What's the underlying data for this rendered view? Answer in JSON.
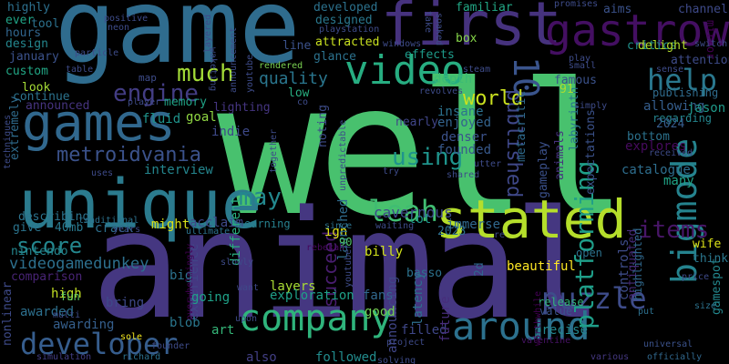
{
  "words": [
    {
      "text": "well",
      "color": "#48c16e"
    },
    {
      "text": "animal",
      "color": "#453781"
    },
    {
      "text": "game",
      "color": "#2f6c8e"
    },
    {
      "text": "unique",
      "color": "#2b7b8e"
    },
    {
      "text": "first",
      "color": "#46327e"
    },
    {
      "text": "gastrow",
      "color": "#440f62"
    },
    {
      "text": "stated",
      "color": "#b5de2b"
    },
    {
      "text": "games",
      "color": "#31688e"
    },
    {
      "text": "video",
      "color": "#27ad81"
    },
    {
      "text": "around",
      "color": "#2c718e"
    },
    {
      "text": "company",
      "color": "#2fb47c"
    },
    {
      "text": "bigmode",
      "color": "#25838e"
    },
    {
      "text": "leah",
      "color": "#40bd72"
    },
    {
      "text": "developer",
      "color": "#365d8d"
    },
    {
      "text": "10",
      "color": "#3a548c"
    },
    {
      "text": "help",
      "color": "#2a788e"
    },
    {
      "text": "puzzle",
      "color": "#3e4c8a"
    },
    {
      "text": "platforming",
      "color": "#1f9e89"
    },
    {
      "text": "metroidvania",
      "color": "#3b528b"
    },
    {
      "text": "published",
      "color": "#3f4889"
    },
    {
      "text": "engine",
      "color": "#433d84"
    },
    {
      "text": "much",
      "color": "#a2da37"
    },
    {
      "text": "succeed",
      "color": "#481d6f"
    },
    {
      "text": "using",
      "color": "#1f948c"
    },
    {
      "text": "may",
      "color": "#23888e"
    },
    {
      "text": "items",
      "color": "#481668"
    },
    {
      "text": "score",
      "color": "#24878e"
    },
    {
      "text": "world",
      "color": "#cae11f"
    },
    {
      "text": "quality",
      "color": "#2a768e"
    },
    {
      "text": "interview",
      "color": "#24868e"
    },
    {
      "text": "videogamedunkey",
      "color": "#2d708e"
    },
    {
      "text": "memory",
      "color": "#20a386"
    },
    {
      "text": "fluid",
      "color": "#1f948c"
    },
    {
      "text": "depth",
      "color": "#3bbb75"
    },
    {
      "text": "insane",
      "color": "#2c728e"
    },
    {
      "text": "enjoyed",
      "color": "#33638d"
    },
    {
      "text": "denser",
      "color": "#3b528b"
    },
    {
      "text": "founded",
      "color": "#38598c"
    },
    {
      "text": "catalogue",
      "color": "#2e6e8e"
    },
    {
      "text": "explores",
      "color": "#460b5e"
    },
    {
      "text": "bottom",
      "color": "#2c728e"
    },
    {
      "text": "many",
      "color": "#20a386"
    },
    {
      "text": "acclaim",
      "color": "#3f4889"
    },
    {
      "text": "earning",
      "color": "#27808e"
    },
    {
      "text": "might",
      "color": "#d8e219"
    },
    {
      "text": "crack",
      "color": "#2d708e"
    },
    {
      "text": "beautiful",
      "color": "#fde725"
    },
    {
      "text": "lot",
      "color": "#1f968b"
    },
    {
      "text": "immerse",
      "color": "#31688e"
    },
    {
      "text": "billy",
      "color": "#d2e21b"
    },
    {
      "text": "basso",
      "color": "#2c728e"
    },
    {
      "text": "fans",
      "color": "#31688e"
    },
    {
      "text": "ign",
      "color": "#e5e419"
    },
    {
      "text": "cavernous",
      "color": "#3e4989"
    },
    {
      "text": "launched",
      "color": "#2f6c8e"
    },
    {
      "text": "layers",
      "color": "#a8db34"
    },
    {
      "text": "exploration",
      "color": "#1fa088"
    },
    {
      "text": "different",
      "color": "#29af7f"
    },
    {
      "text": "experience",
      "color": "#414487"
    },
    {
      "text": "bring",
      "color": "#3e4989"
    },
    {
      "text": "awarding",
      "color": "#355f8d"
    },
    {
      "text": "awarded",
      "color": "#2d708e"
    },
    {
      "text": "high",
      "color": "#c2df23"
    },
    {
      "text": "fun",
      "color": "#5ec962"
    },
    {
      "text": "comparison",
      "color": "#482475"
    },
    {
      "text": "nintendo",
      "color": "#24868e"
    },
    {
      "text": "big",
      "color": "#2c728e"
    },
    {
      "text": "going",
      "color": "#1fa188"
    },
    {
      "text": "art",
      "color": "#35b779"
    },
    {
      "text": "blob",
      "color": "#2a778e"
    },
    {
      "text": "also",
      "color": "#423f85"
    },
    {
      "text": "followed",
      "color": "#228c8d"
    },
    {
      "text": "filled",
      "color": "#3f4788"
    },
    {
      "text": "announcing",
      "color": "#404688"
    },
    {
      "text": "latency",
      "color": "#2d708e"
    },
    {
      "text": "future",
      "color": "#472d7b"
    },
    {
      "text": "controls",
      "color": "#3e4c8a"
    },
    {
      "text": "antiquated",
      "color": "#472c7a"
    },
    {
      "text": "highlighted",
      "color": "#30698e"
    },
    {
      "text": "good",
      "color": "#75d054"
    },
    {
      "text": "release",
      "color": "#31b57b"
    },
    {
      "text": "value",
      "color": "#3a548c"
    },
    {
      "text": "precise",
      "color": "#24878e"
    },
    {
      "text": "gamespot",
      "color": "#23888e"
    },
    {
      "text": "gameplay",
      "color": "#3b518b"
    },
    {
      "text": "animals",
      "color": "#46327e"
    },
    {
      "text": "labyrinth",
      "color": "#2a768e"
    },
    {
      "text": "expectations",
      "color": "#3b528b"
    },
    {
      "text": "metacritic",
      "color": "#2f6b8e"
    },
    {
      "text": "allowing",
      "color": "#355e8d"
    },
    {
      "text": "jason",
      "color": "#1f9a8a"
    },
    {
      "text": "regarding",
      "color": "#24868e"
    },
    {
      "text": "2024",
      "color": "#365c8d"
    },
    {
      "text": "lighting",
      "color": "#453581"
    },
    {
      "text": "indie",
      "color": "#3e4989"
    },
    {
      "text": "goal",
      "color": "#90d743"
    },
    {
      "text": "low",
      "color": "#28ae80"
    },
    {
      "text": "look",
      "color": "#a5db36"
    },
    {
      "text": "continue",
      "color": "#2c738e"
    },
    {
      "text": "announced",
      "color": "#463480"
    },
    {
      "text": "extremely",
      "color": "#2f6c8e"
    },
    {
      "text": "describing",
      "color": "#2c738e"
    },
    {
      "text": "give",
      "color": "#2b748e"
    },
    {
      "text": "40mb",
      "color": "#29798e"
    },
    {
      "text": "designed",
      "color": "#2a788e"
    },
    {
      "text": "developed",
      "color": "#2c728e"
    },
    {
      "text": "attracted",
      "color": "#c8e020"
    },
    {
      "text": "line",
      "color": "#3b528b"
    },
    {
      "text": "glance",
      "color": "#2c728e"
    },
    {
      "text": "effects",
      "color": "#1e9b8a"
    },
    {
      "text": "familiar",
      "color": "#22a785"
    },
    {
      "text": "box",
      "color": "#86d549"
    },
    {
      "text": "aims",
      "color": "#3b528b"
    },
    {
      "text": "channel",
      "color": "#3e4a89"
    },
    {
      "text": "critics",
      "color": "#21918c"
    },
    {
      "text": "delight",
      "color": "#b2dd2d"
    },
    {
      "text": "attention",
      "color": "#3e4c8a"
    },
    {
      "text": "mirror",
      "color": "#440154"
    },
    {
      "text": "design",
      "color": "#24878e"
    },
    {
      "text": "january",
      "color": "#3b528b"
    },
    {
      "text": "custom",
      "color": "#22a785"
    },
    {
      "text": "hours",
      "color": "#31668e"
    },
    {
      "text": "ever",
      "color": "#20a486"
    },
    {
      "text": "highly",
      "color": "#2d708e"
    },
    {
      "text": "tool",
      "color": "#2c728e"
    },
    {
      "text": "90",
      "color": "#50c46a"
    },
    {
      "text": "91",
      "color": "#addc30"
    },
    {
      "text": "2023",
      "color": "#2e6f8e"
    },
    {
      "text": "2d",
      "color": "#31668e"
    },
    {
      "text": "nearly",
      "color": "#404588"
    },
    {
      "text": "noting",
      "color": "#3e4c8a"
    },
    {
      "text": "famous",
      "color": "#3b528b"
    },
    {
      "text": "publishing",
      "color": "#2f6c8e"
    },
    {
      "text": "wife",
      "color": "#dde318"
    },
    {
      "text": "think",
      "color": "#2a778e"
    },
    {
      "text": "open",
      "color": "#2c728e"
    },
    {
      "text": "nonlinear",
      "color": "#3e4a89"
    },
    {
      "text": "simulation",
      "color": "#433e85"
    },
    {
      "text": "richard",
      "color": "#2c718e"
    },
    {
      "text": "officially",
      "color": "#31688e"
    },
    {
      "text": "various",
      "color": "#453882"
    },
    {
      "text": "universal",
      "color": "#3b528b"
    },
    {
      "text": "valentine",
      "color": "#471365"
    },
    {
      "text": "project",
      "color": "#3e4a89"
    },
    {
      "text": "worthwhile",
      "color": "#440154"
    },
    {
      "text": "put",
      "color": "#2d708e"
    },
    {
      "text": "size",
      "color": "#2c728e"
    },
    {
      "text": "price",
      "color": "#3e4a89"
    },
    {
      "text": "upon",
      "color": "#3e4a89"
    },
    {
      "text": "want",
      "color": "#3f4889"
    },
    {
      "text": "slowly",
      "color": "#3e4c8a"
    },
    {
      "text": "sole",
      "color": "#f1e51d"
    },
    {
      "text": "multi",
      "color": "#3e4c8a"
    },
    {
      "text": "overwhelmingly",
      "color": "#440154"
    },
    {
      "text": "founder",
      "color": "#3e4c8a"
    },
    {
      "text": "rebekah",
      "color": "#46085c"
    },
    {
      "text": "youtuber",
      "color": "#3e4c8a"
    },
    {
      "text": "ultimate",
      "color": "#2c728e"
    },
    {
      "text": "years",
      "color": "#3e4a89"
    },
    {
      "text": "traditional",
      "color": "#2c728e"
    },
    {
      "text": "since",
      "color": "#2c728e"
    },
    {
      "text": "waiting",
      "color": "#3e4c8a"
    },
    {
      "text": "re",
      "color": "#3e4a89"
    },
    {
      "text": "uses",
      "color": "#3e4a89"
    },
    {
      "text": "together",
      "color": "#3e4c8a"
    },
    {
      "text": "try",
      "color": "#3e4c8a"
    },
    {
      "text": "shared",
      "color": "#3e4c8a"
    },
    {
      "text": "utter",
      "color": "#3e4c8a"
    },
    {
      "text": "received",
      "color": "#3e4c8a"
    },
    {
      "text": "simply",
      "color": "#3e4c8a"
    },
    {
      "text": "sense",
      "color": "#3e4c8a"
    },
    {
      "text": "switch",
      "color": "#3e4c8a"
    },
    {
      "text": "small",
      "color": "#3e4c8a"
    },
    {
      "text": "play",
      "color": "#3e4c8a"
    },
    {
      "text": "promises",
      "color": "#3e4c8a"
    },
    {
      "text": "steam",
      "color": "#3e4c8a"
    },
    {
      "text": "revolves",
      "color": "#3e4c8a"
    },
    {
      "text": "windows",
      "color": "#3e4c8a"
    },
    {
      "text": "playstation",
      "color": "#3e4c8a"
    },
    {
      "text": "rendered",
      "color": "#7ad151"
    },
    {
      "text": "player",
      "color": "#3e4c8a"
    },
    {
      "text": "table",
      "color": "#3e4c8a"
    },
    {
      "text": "particle",
      "color": "#3e4c8a"
    },
    {
      "text": "layered",
      "color": "#3e4c8a"
    },
    {
      "text": "waketing",
      "color": "#3e4c8a"
    },
    {
      "text": "announcement",
      "color": "#3e4c8a"
    },
    {
      "text": "youtube",
      "color": "#3e4c8a"
    },
    {
      "text": "positive",
      "color": "#3e4c8a"
    },
    {
      "text": "neon",
      "color": "#3e4c8a"
    },
    {
      "text": "take",
      "color": "#3e4c8a"
    },
    {
      "text": "soaked",
      "color": "#3e4c8a"
    },
    {
      "text": "unpredictable",
      "color": "#3e4c8a"
    },
    {
      "text": "solving",
      "color": "#3e4c8a"
    },
    {
      "text": "techniques",
      "color": "#3e4c8a"
    },
    {
      "text": "map",
      "color": "#3e4c8a"
    },
    {
      "text": "co",
      "color": "#3e4c8a"
    }
  ]
}
